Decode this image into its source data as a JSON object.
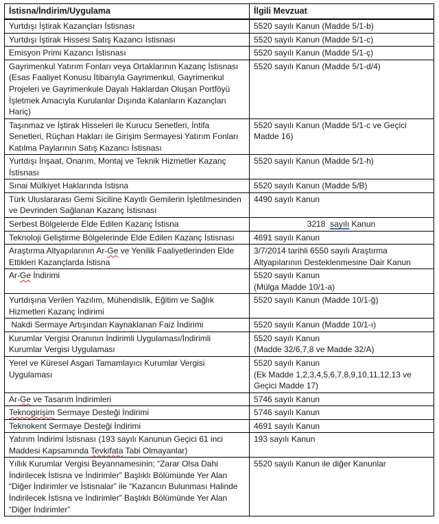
{
  "colors": {
    "border": "#000000",
    "text": "#1a1a1a",
    "spellcheck_red": "#cc2222",
    "grammar_blue": "#3b6cb7",
    "background": "#ffffff"
  },
  "table": {
    "headers": [
      "İstisna/İndirim/Uygulama",
      "İlgili Mevzuat"
    ],
    "rows": [
      {
        "istisna": {
          "lines": [
            [
              {
                "t": "Yurtdışı İştirak Kazançları İstisnası"
              }
            ]
          ]
        },
        "mevzuat": {
          "lines": [
            [
              {
                "t": "5520 sayılı Kanun (Madde 5/1-b)"
              }
            ]
          ]
        }
      },
      {
        "istisna": {
          "lines": [
            [
              {
                "t": "Yurtdışı İştirak Hissesi Satış Kazancı İstisnası"
              }
            ]
          ]
        },
        "mevzuat": {
          "lines": [
            [
              {
                "t": "5520 sayılı Kanun (Madde 5/1-c)"
              }
            ]
          ]
        }
      },
      {
        "istisna": {
          "lines": [
            [
              {
                "t": "Emisyon Primi Kazancı İstisnası"
              }
            ]
          ]
        },
        "mevzuat": {
          "lines": [
            [
              {
                "t": "5520 sayılı Kanun (Madde 5/1-ç)"
              }
            ]
          ]
        }
      },
      {
        "istisna": {
          "lines": [
            [
              {
                "t": "Gayrimenkul Yatırım Fonları veya Ortaklarının Kazanç İstisnası (Esas Faaliyet Konusu İtibarıyla Gayrimenkul, Gayrimenkul Projeleri ve Gayrimenkule Dayalı Haklardan Oluşan Portföyü İşletmek Amacıyla Kurulanlar Dışında Kalanların Kazançları Hariç)"
              }
            ]
          ]
        },
        "mevzuat": {
          "lines": [
            [
              {
                "t": "5520 sayılı Kanun (Madde 5/1-d/4)"
              }
            ]
          ]
        }
      },
      {
        "istisna": {
          "lines": [
            [
              {
                "t": "Taşınmaz ve İştirak Hisseleri ile Kurucu Senetleri, İntifa Senetleri, Rüçhan Hakları ile Girişim Sermayesi Yatırım Fonları Katılma Paylarının Satış Kazancı İstisnası"
              }
            ]
          ]
        },
        "mevzuat": {
          "lines": [
            [
              {
                "t": "5520 sayılı Kanun (Madde 5/1-c ve Geçici Madde 16)"
              }
            ]
          ]
        }
      },
      {
        "istisna": {
          "lines": [
            [
              {
                "t": "Yurtdışı İnşaat, Onarım, Montaj ve Teknik Hizmetler Kazanç İstisnası"
              }
            ]
          ]
        },
        "mevzuat": {
          "lines": [
            [
              {
                "t": "5520 sayılı Kanun (Madde 5/1-h)"
              }
            ]
          ]
        }
      },
      {
        "istisna": {
          "lines": [
            [
              {
                "t": "Sınai Mülkiyet Haklarında İstisna"
              }
            ]
          ]
        },
        "mevzuat": {
          "lines": [
            [
              {
                "t": "5520 sayılı Kanun (Madde 5/B)"
              }
            ]
          ]
        }
      },
      {
        "istisna": {
          "lines": [
            [
              {
                "t": "Türk Uluslararası Gemi Siciline Kayıtlı Gemilerin İşletilmesinden ve Devrinden Sağlanan Kazanç İstisnası"
              }
            ]
          ]
        },
        "mevzuat": {
          "lines": [
            [
              {
                "t": "4490 sayılı Kanun"
              }
            ]
          ]
        }
      },
      {
        "istisna": {
          "lines": [
            [
              {
                "t": "Serbest Bölgelerde Elde Edilen Kazanç İstisna"
              }
            ]
          ]
        },
        "mevzuat": {
          "align": "center",
          "lines": [
            [
              {
                "t": "3218  "
              },
              {
                "t": "sayılı",
                "m": "blue"
              },
              {
                "t": " Kanun"
              }
            ]
          ]
        }
      },
      {
        "istisna": {
          "lines": [
            [
              {
                "t": "Teknoloji Geliştirme Bölgelerinde Elde Edilen Kazanç İstisnası"
              }
            ]
          ]
        },
        "mevzuat": {
          "lines": [
            [
              {
                "t": "4691 sayılı Kanun"
              }
            ]
          ]
        }
      },
      {
        "istisna": {
          "lines": [
            [
              {
                "t": "Araştırma Altyapılarının Ar-"
              },
              {
                "t": "Ge",
                "m": "red"
              },
              {
                "t": " ve Yenilik Faaliyetlerinden Elde Ettikleri Kazançlarda İstisna"
              }
            ]
          ]
        },
        "mevzuat": {
          "lines": [
            [
              {
                "t": "3/7/2014 tarihli 6550 sayılı Araştırma Altyapılarının Desteklenmesine Dair Kanun"
              }
            ]
          ]
        }
      },
      {
        "istisna": {
          "lines": [
            [
              {
                "t": "Ar-"
              },
              {
                "t": "Ge",
                "m": "red"
              },
              {
                "t": " İndirimi"
              }
            ]
          ]
        },
        "mevzuat": {
          "lines": [
            [
              {
                "t": "5520 sayılı Kanun"
              }
            ],
            [
              {
                "t": "(Mülga Madde 10/1-a)"
              }
            ]
          ]
        }
      },
      {
        "istisna": {
          "lines": [
            [
              {
                "t": "Yurtdışına Verilen Yazılım, Mühendislik, Eğitim ve Sağlık Hizmetleri Kazanç İndirimi"
              }
            ]
          ]
        },
        "mevzuat": {
          "lines": [
            [
              {
                "t": "5520 sayılı Kanun (Madde 10/1-ğ)"
              }
            ]
          ]
        }
      },
      {
        "istisna": {
          "lines": [
            [
              {
                "t": " Nakdi Sermaye Artışından Kaynaklanan Faiz İndirimi"
              }
            ]
          ]
        },
        "mevzuat": {
          "lines": [
            [
              {
                "t": "5520 sayılı Kanun (Madde 10/1-ı)"
              }
            ]
          ]
        }
      },
      {
        "istisna": {
          "lines": [
            [
              {
                "t": "Kurumlar Vergisi Oranının İndirimli Uygulaması/İndirimli Kurumlar Vergisi Uygulaması"
              }
            ]
          ]
        },
        "mevzuat": {
          "lines": [
            [
              {
                "t": "5520 sayılı Kanun"
              }
            ],
            [
              {
                "t": "(Madde 32/6,7,8 ve Madde 32/A)"
              }
            ]
          ]
        }
      },
      {
        "istisna": {
          "lines": [
            [
              {
                "t": "Yerel ve Küresel Asgari Tamamlayıcı Kurumlar Vergisi Uygulaması"
              }
            ]
          ]
        },
        "mevzuat": {
          "lines": [
            [
              {
                "t": "5520 sayılı Kanun"
              }
            ],
            [
              {
                "t": "(Ek Madde 1,2,3,4,5,6,7,8,9,10,11,12,13 ve Geçici Madde 17)"
              }
            ]
          ]
        }
      },
      {
        "istisna": {
          "lines": [
            [
              {
                "t": "Ar-"
              },
              {
                "t": "Ge",
                "m": "red"
              },
              {
                "t": " ve Tasarım İndirimleri"
              }
            ]
          ]
        },
        "mevzuat": {
          "lines": [
            [
              {
                "t": "5746 sayılı Kanun"
              }
            ]
          ]
        }
      },
      {
        "istisna": {
          "lines": [
            [
              {
                "t": "Teknogirişim",
                "m": "red"
              },
              {
                "t": " Sermaye Desteği İndirimi"
              }
            ]
          ]
        },
        "mevzuat": {
          "lines": [
            [
              {
                "t": "5746 sayılı Kanun"
              }
            ]
          ]
        }
      },
      {
        "istisna": {
          "lines": [
            [
              {
                "t": "Teknokent Sermaye Desteği İndirimi"
              }
            ]
          ]
        },
        "mevzuat": {
          "lines": [
            [
              {
                "t": "4691 sayılı Kanun"
              }
            ]
          ]
        }
      },
      {
        "istisna": {
          "lines": [
            [
              {
                "t": "Yatırım İndirimi İstisnası (193 sayılı Kanunun Geçici 61 inci Maddesi Kapsamında "
              },
              {
                "t": "Tevkifata",
                "m": "red"
              },
              {
                "t": " Tabi Olmayanlar)"
              }
            ]
          ]
        },
        "mevzuat": {
          "lines": [
            [
              {
                "t": "193 sayılı Kanun"
              }
            ]
          ]
        }
      },
      {
        "istisna": {
          "lines": [
            [
              {
                "t": "Yıllık Kurumlar Vergisi Beyannamesinin; “Zarar Olsa Dahi İndirilecek İstisna ve İndirimler” Başlıklı Bölümünde Yer Alan “Diğer İndirimler ve İstisnalar” ile “Kazancın Bulunması Halinde İndirilecek İstisna ve İndirimler” Başlıklı Bölümünde Yer Alan “Diğer İndirimler”"
              }
            ]
          ]
        },
        "mevzuat": {
          "lines": [
            [
              {
                "t": "5520 sayılı Kanun ile diğer Kanunlar"
              }
            ]
          ]
        }
      }
    ]
  }
}
